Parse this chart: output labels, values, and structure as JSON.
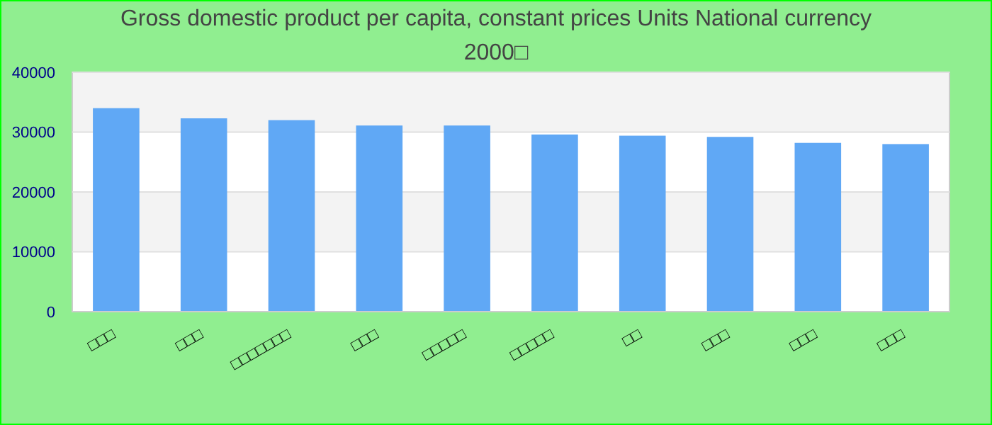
{
  "chart_data": {
    "type": "bar",
    "title": "Gross domestic product per capita, constant prices Units National currency",
    "subtitle": "2000□",
    "categories": [
      "□□□",
      "□□□",
      "□□□□□□□",
      "□□□",
      "□□□□□",
      "□□□□□",
      "□□",
      "□□□",
      "□□□",
      "□□□"
    ],
    "values": [
      34000,
      32300,
      32000,
      31100,
      31100,
      29600,
      29400,
      29200,
      28200,
      28000
    ],
    "color": "#60a8f5",
    "ylim": [
      0,
      40000
    ],
    "yticks": [
      0,
      10000,
      20000,
      30000,
      40000
    ],
    "grid": "y"
  }
}
